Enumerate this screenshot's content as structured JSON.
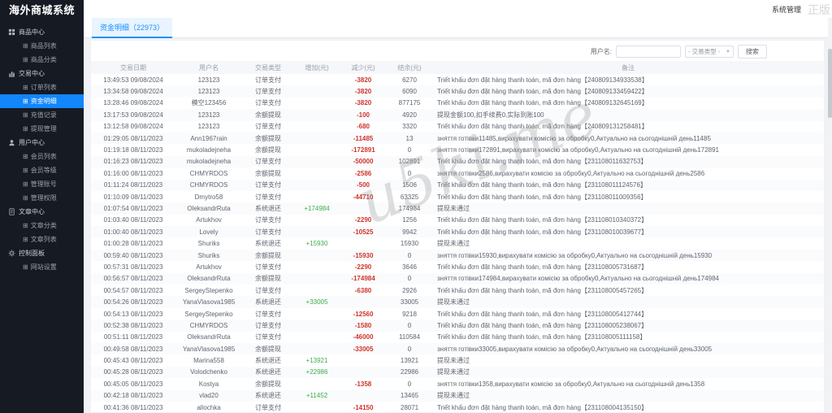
{
  "app": {
    "title": "海外商城系统",
    "topbar_right": "系统管理",
    "watermark": "u5ki.me",
    "watermark_corner": "正版",
    "accent_color": "#1286fb",
    "negative_color": "#cf342c",
    "positive_color": "#3fae49"
  },
  "sidebar": {
    "sections": [
      {
        "label": "商品中心",
        "icon": "grid-icon",
        "children": [
          {
            "label": "商品列表"
          },
          {
            "label": "商品分类"
          }
        ]
      },
      {
        "label": "交易中心",
        "icon": "chart-icon",
        "children": [
          {
            "label": "订单列表"
          },
          {
            "label": "资金明细",
            "active": true
          },
          {
            "label": "充值记录"
          },
          {
            "label": "提现管理"
          }
        ]
      },
      {
        "label": "用户中心",
        "icon": "user-icon",
        "children": [
          {
            "label": "会员列表"
          },
          {
            "label": "会员等级"
          },
          {
            "label": "管理账号"
          },
          {
            "label": "管理权限"
          }
        ]
      },
      {
        "label": "文章中心",
        "icon": "doc-icon",
        "children": [
          {
            "label": "文章分类"
          },
          {
            "label": "文章列表"
          }
        ]
      },
      {
        "label": "控制面板",
        "icon": "gear-icon",
        "children": [
          {
            "label": "网站设置"
          }
        ]
      }
    ]
  },
  "tab": {
    "label": "资金明细（22973）"
  },
  "filters": {
    "username_label": "用户名:",
    "username_value": "",
    "type_select": "- 交易类型 -",
    "search_button": "搜索"
  },
  "table": {
    "headers": [
      "交易日期",
      "用户名",
      "交易类型",
      "增加(元)",
      "减少(元)",
      "结余(元)",
      "备注"
    ],
    "rows": [
      {
        "time": "13:49:53 09/08/2024",
        "user": "123123",
        "type": "订单支付",
        "inc": "",
        "dec": "-3820",
        "bal": "6270",
        "remark": "Triết khấu đơn đặt hàng thanh toán, mã đơn hàng【240809134933538】"
      },
      {
        "time": "13:34:58 09/08/2024",
        "user": "123123",
        "type": "订单支付",
        "inc": "",
        "dec": "-3820",
        "bal": "6090",
        "remark": "Triết khấu đơn đặt hàng thanh toán, mã đơn hàng【240809133459422】"
      },
      {
        "time": "13:28:46 09/08/2024",
        "user": "模空123456",
        "type": "订单支付",
        "inc": "",
        "dec": "-3820",
        "bal": "877175",
        "remark": "Triết khấu đơn đặt hàng thanh toán, mã đơn hàng【240809132645169】"
      },
      {
        "time": "13:17:53 09/08/2024",
        "user": "123123",
        "type": "余额提现",
        "inc": "",
        "dec": "-100",
        "bal": "4920",
        "remark": "提现金额100,扣手续费0,实际到账100"
      },
      {
        "time": "13:12:58 09/08/2024",
        "user": "123123",
        "type": "订单支付",
        "inc": "",
        "dec": "-680",
        "bal": "3320",
        "remark": "Triết khấu đơn đặt hàng thanh toán, mã đơn hàng【240809131258481】"
      },
      {
        "time": "01:29:05 08/11/2023",
        "user": "Ann1967rain",
        "type": "余额提现",
        "inc": "",
        "dec": "-11485",
        "bal": "13",
        "remark": "зняття готівки11485,вирахувати комісію за обробку0,Актуально на сьогоднішній день11485"
      },
      {
        "time": "01:19:18 08/11/2023",
        "user": "mukoladejneha",
        "type": "余额提现",
        "inc": "",
        "dec": "-172891",
        "bal": "0",
        "remark": "зняття готівки172891,вирахувати комісію за обробку0,Актуально на сьогоднішній день172891"
      },
      {
        "time": "01:16:23 08/11/2023",
        "user": "mukoladejneha",
        "type": "订单支付",
        "inc": "",
        "dec": "-50000",
        "bal": "102891",
        "remark": "Triết khấu đơn đặt hàng thanh toán, mã đơn hàng【231108011632753】"
      },
      {
        "time": "01:16:00 08/11/2023",
        "user": "CHMYRDOS",
        "type": "余额提现",
        "inc": "",
        "dec": "-2586",
        "bal": "0",
        "remark": "зняття готівки2586,вирахувати комісію за обробку0,Актуально на сьогоднішній день2586"
      },
      {
        "time": "01:11:24 08/11/2023",
        "user": "CHMYRDOS",
        "type": "订单支付",
        "inc": "",
        "dec": "-500",
        "bal": "1506",
        "remark": "Triết khấu đơn đặt hàng thanh toán, mã đơn hàng【231108011124576】"
      },
      {
        "time": "01:10:09 08/11/2023",
        "user": "Dmytro58",
        "type": "订单支付",
        "inc": "",
        "dec": "-44710",
        "bal": "63325",
        "remark": "Triết khấu đơn đặt hàng thanh toán, mã đơn hàng【231108011009356】"
      },
      {
        "time": "01:07:54 08/11/2023",
        "user": "OleksandrRuta",
        "type": "系统退还",
        "inc": "+174984",
        "dec": "",
        "bal": "174984",
        "remark": "提现未通过"
      },
      {
        "time": "01:03:40 08/11/2023",
        "user": "Artukhov",
        "type": "订单支付",
        "inc": "",
        "dec": "-2290",
        "bal": "1256",
        "remark": "Triết khấu đơn đặt hàng thanh toán, mã đơn hàng【231108010340372】"
      },
      {
        "time": "01:00:40 08/11/2023",
        "user": "Lovely",
        "type": "订单支付",
        "inc": "",
        "dec": "-10525",
        "bal": "9942",
        "remark": "Triết khấu đơn đặt hàng thanh toán, mã đơn hàng【231108010039677】"
      },
      {
        "time": "01:00:28 08/11/2023",
        "user": "Shuriks",
        "type": "系统退还",
        "inc": "+15930",
        "dec": "",
        "bal": "15930",
        "remark": "提现未通过"
      },
      {
        "time": "00:59:40 08/11/2023",
        "user": "Shuriks",
        "type": "余额提现",
        "inc": "",
        "dec": "-15930",
        "bal": "0",
        "remark": "зняття готівки15930,вирахувати комісію за обробку0,Актуально на сьогоднішній день15930"
      },
      {
        "time": "00:57:31 08/11/2023",
        "user": "Artukhov",
        "type": "订单支付",
        "inc": "",
        "dec": "-2290",
        "bal": "3646",
        "remark": "Triết khấu đơn đặt hàng thanh toán, mã đơn hàng【231108005731687】"
      },
      {
        "time": "00:56:57 08/11/2023",
        "user": "OleksandrRuta",
        "type": "余额提现",
        "inc": "",
        "dec": "-174984",
        "bal": "0",
        "remark": "зняття готівки174984,вирахувати комісію за обробку0,Актуально на сьогоднішній день174984"
      },
      {
        "time": "00:54:57 08/11/2023",
        "user": "SergeyStepenko",
        "type": "订单支付",
        "inc": "",
        "dec": "-6380",
        "bal": "2926",
        "remark": "Triết khấu đơn đặt hàng thanh toán, mã đơn hàng【231108005457265】"
      },
      {
        "time": "00:54:26 08/11/2023",
        "user": "YanaVlasova1985",
        "type": "系统退还",
        "inc": "+33005",
        "dec": "",
        "bal": "33005",
        "remark": "提现未通过"
      },
      {
        "time": "00:54:13 08/11/2023",
        "user": "SergeyStepenko",
        "type": "订单支付",
        "inc": "",
        "dec": "-12560",
        "bal": "9218",
        "remark": "Triết khấu đơn đặt hàng thanh toán, mã đơn hàng【231108005412744】"
      },
      {
        "time": "00:52:38 08/11/2023",
        "user": "CHMYRDOS",
        "type": "订单支付",
        "inc": "",
        "dec": "-1580",
        "bal": "0",
        "remark": "Triết khấu đơn đặt hàng thanh toán, mã đơn hàng【231108005238067】"
      },
      {
        "time": "00:51:11 08/11/2023",
        "user": "OleksandrRuta",
        "type": "订单支付",
        "inc": "",
        "dec": "-46000",
        "bal": "110584",
        "remark": "Triết khấu đơn đặt hàng thanh toán, mã đơn hàng【231108005111158】"
      },
      {
        "time": "00:49:58 08/11/2023",
        "user": "YanaVlasova1985",
        "type": "余额提现",
        "inc": "",
        "dec": "-33005",
        "bal": "0",
        "remark": "зняття готівки33005,вирахувати комісію за обробку0,Актуально на сьогоднішній день33005"
      },
      {
        "time": "00:45:43 08/11/2023",
        "user": "Marina558",
        "type": "系统退还",
        "inc": "+13921",
        "dec": "",
        "bal": "13921",
        "remark": "提现未通过"
      },
      {
        "time": "00:45:28 08/11/2023",
        "user": "Volodchenko",
        "type": "系统退还",
        "inc": "+22986",
        "dec": "",
        "bal": "22986",
        "remark": "提现未通过"
      },
      {
        "time": "00:45:05 08/11/2023",
        "user": "Kostya",
        "type": "余额提现",
        "inc": "",
        "dec": "-1358",
        "bal": "0",
        "remark": "зняття готівки1358,вирахувати комісію за обробку0,Актуально на сьогоднішній день1358"
      },
      {
        "time": "00:42:18 08/11/2023",
        "user": "vlad20",
        "type": "系统退还",
        "inc": "+11452",
        "dec": "",
        "bal": "13465",
        "remark": "提现未通过"
      },
      {
        "time": "00:41:36 08/11/2023",
        "user": "allochka",
        "type": "订单支付",
        "inc": "",
        "dec": "-14150",
        "bal": "28071",
        "remark": "Triết khấu đơn đặt hàng thanh toán, mã đơn hàng【231108004135150】"
      }
    ]
  }
}
